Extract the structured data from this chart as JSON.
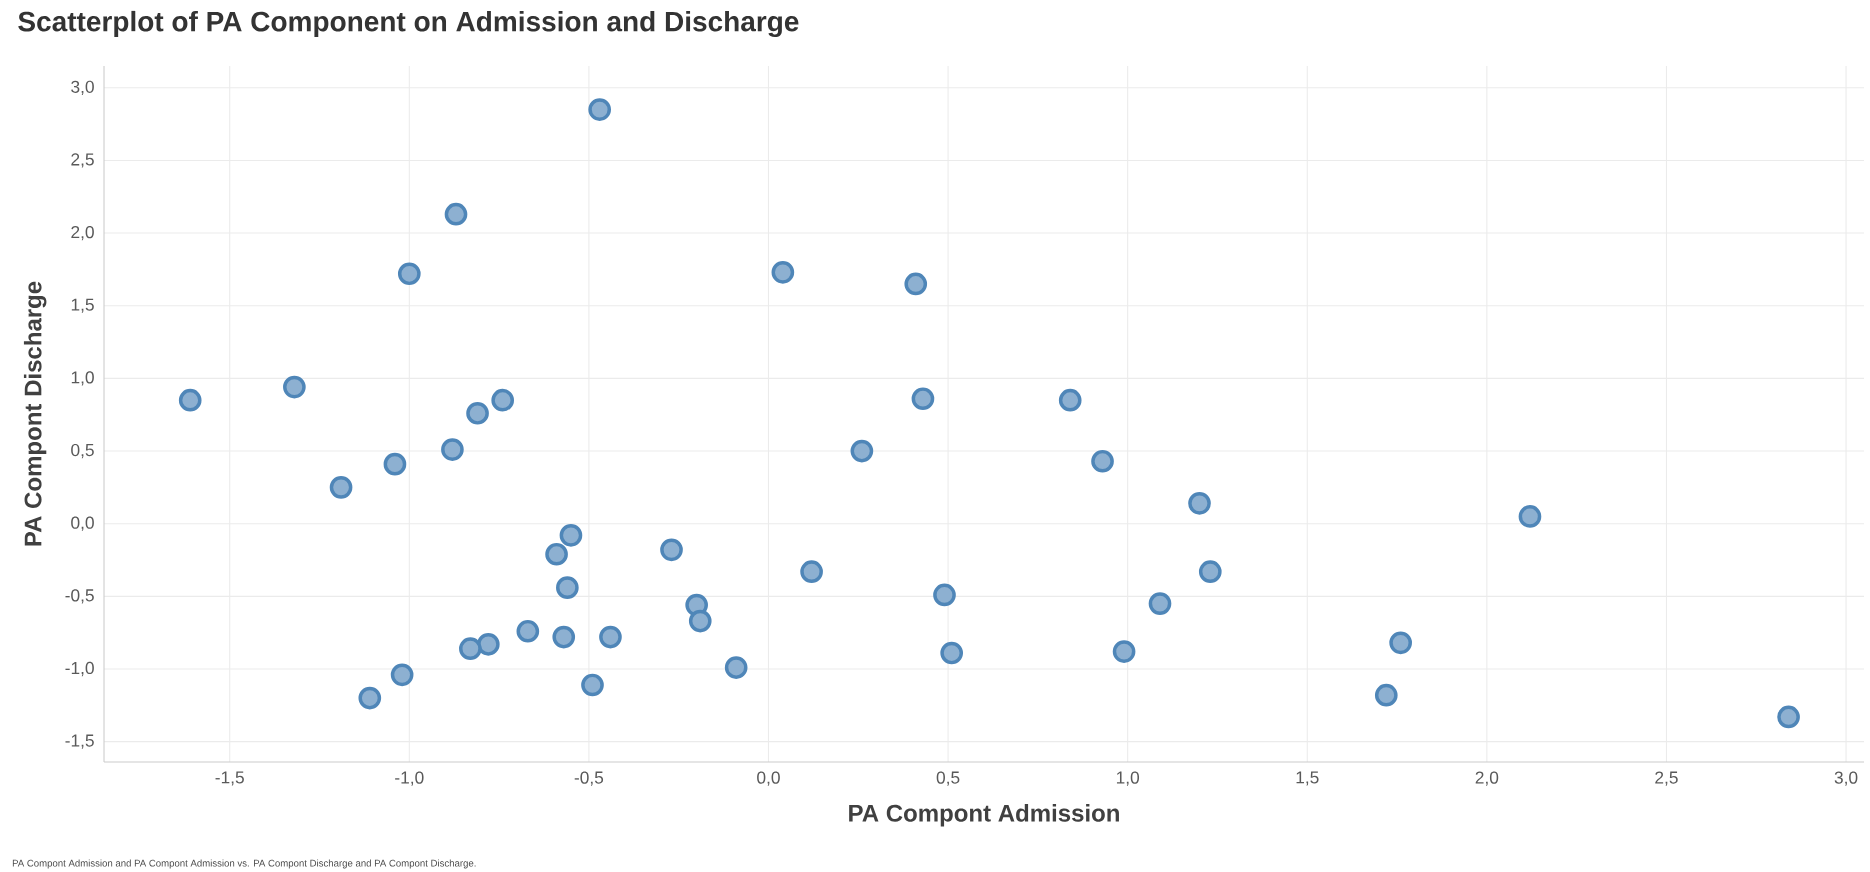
{
  "chart_data": {
    "type": "scatter",
    "title": "Scatterplot of PA Component on Admission and Discharge",
    "xlabel": "PA Compont Admission",
    "ylabel": "PA Compont Discharge",
    "annotations": [
      "PA Compont Admission and PA Compont Admission vs. PA Compont Discharge and PA Compont Discharge."
    ],
    "marker": "circle",
    "grid": true,
    "xlim": [
      -1.85,
      3.05
    ],
    "ylim": [
      -1.64,
      3.15
    ],
    "xticks": [
      {
        "value": -1.5,
        "label": "-1,5"
      },
      {
        "value": -1.0,
        "label": "-1,0"
      },
      {
        "value": -0.5,
        "label": "-0,5"
      },
      {
        "value": 0.0,
        "label": "0,0"
      },
      {
        "value": 0.5,
        "label": "0,5"
      },
      {
        "value": 1.0,
        "label": "1,0"
      },
      {
        "value": 1.5,
        "label": "1,5"
      },
      {
        "value": 2.0,
        "label": "2,0"
      },
      {
        "value": 2.5,
        "label": "2,5"
      },
      {
        "value": 3.0,
        "label": "3,0"
      }
    ],
    "yticks": [
      {
        "value": -1.5,
        "label": "-1,5"
      },
      {
        "value": -1.0,
        "label": "-1,0"
      },
      {
        "value": -0.5,
        "label": "-0,5"
      },
      {
        "value": 0.0,
        "label": "0,0"
      },
      {
        "value": 0.5,
        "label": "0,5"
      },
      {
        "value": 1.0,
        "label": "1,0"
      },
      {
        "value": 1.5,
        "label": "1,5"
      },
      {
        "value": 2.0,
        "label": "2,0"
      },
      {
        "value": 2.5,
        "label": "2,5"
      },
      {
        "value": 3.0,
        "label": "3,0"
      }
    ],
    "series": [
      {
        "color": "#4f86b8",
        "x": [
          -1.61,
          -1.32,
          -1.19,
          -1.04,
          -1.0,
          -0.87,
          -0.88,
          -0.81,
          -0.74,
          -0.47,
          -0.55,
          -0.59,
          -0.56,
          -0.57,
          -0.44,
          -0.67,
          -0.78,
          -0.83,
          -1.02,
          -1.11,
          -0.49,
          -0.27,
          -0.2,
          -0.19,
          -0.09,
          0.04,
          0.12,
          0.26,
          0.41,
          0.43,
          0.49,
          0.51,
          0.84,
          0.93,
          0.99,
          1.09,
          1.2,
          1.23,
          1.72,
          1.76,
          2.12,
          2.84
        ],
        "values": [
          0.85,
          0.94,
          0.25,
          0.41,
          1.72,
          2.13,
          0.51,
          0.76,
          0.85,
          2.85,
          -0.08,
          -0.21,
          -0.44,
          -0.78,
          -0.78,
          -0.74,
          -0.83,
          -0.86,
          -1.04,
          -1.2,
          -1.11,
          -0.18,
          -0.56,
          -0.67,
          -0.99,
          1.73,
          -0.33,
          0.5,
          1.65,
          0.86,
          -0.49,
          -0.89,
          0.85,
          0.43,
          -0.88,
          -0.55,
          0.14,
          -0.33,
          -1.18,
          -0.82,
          0.05,
          -1.33
        ]
      }
    ]
  }
}
